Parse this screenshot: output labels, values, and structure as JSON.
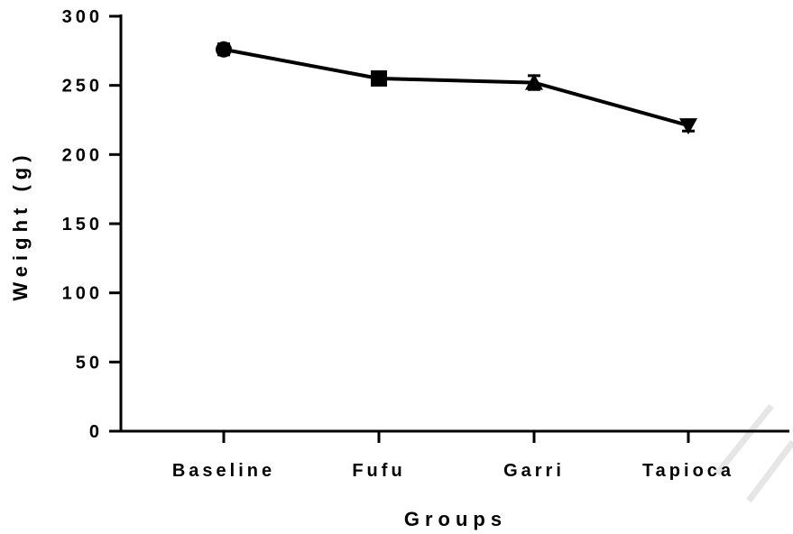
{
  "chart_data": {
    "type": "line",
    "title": "",
    "xlabel": "Groups",
    "ylabel": "Weight (g)",
    "categories": [
      "Baseline",
      "Fufu",
      "Garri",
      "Tapioca"
    ],
    "series": [
      {
        "values": [
          276,
          255,
          252,
          221
        ],
        "errors": [
          4,
          4,
          5,
          4
        ],
        "markers": [
          "circle",
          "square",
          "triangle-up",
          "triangle-down"
        ]
      }
    ],
    "ylim": [
      0,
      300
    ],
    "yticks": [
      0,
      50,
      100,
      150,
      200,
      250,
      300
    ],
    "grid": false,
    "legend": "none",
    "colors": {
      "series": "#000000",
      "watermark": "#e6e6e6"
    }
  }
}
